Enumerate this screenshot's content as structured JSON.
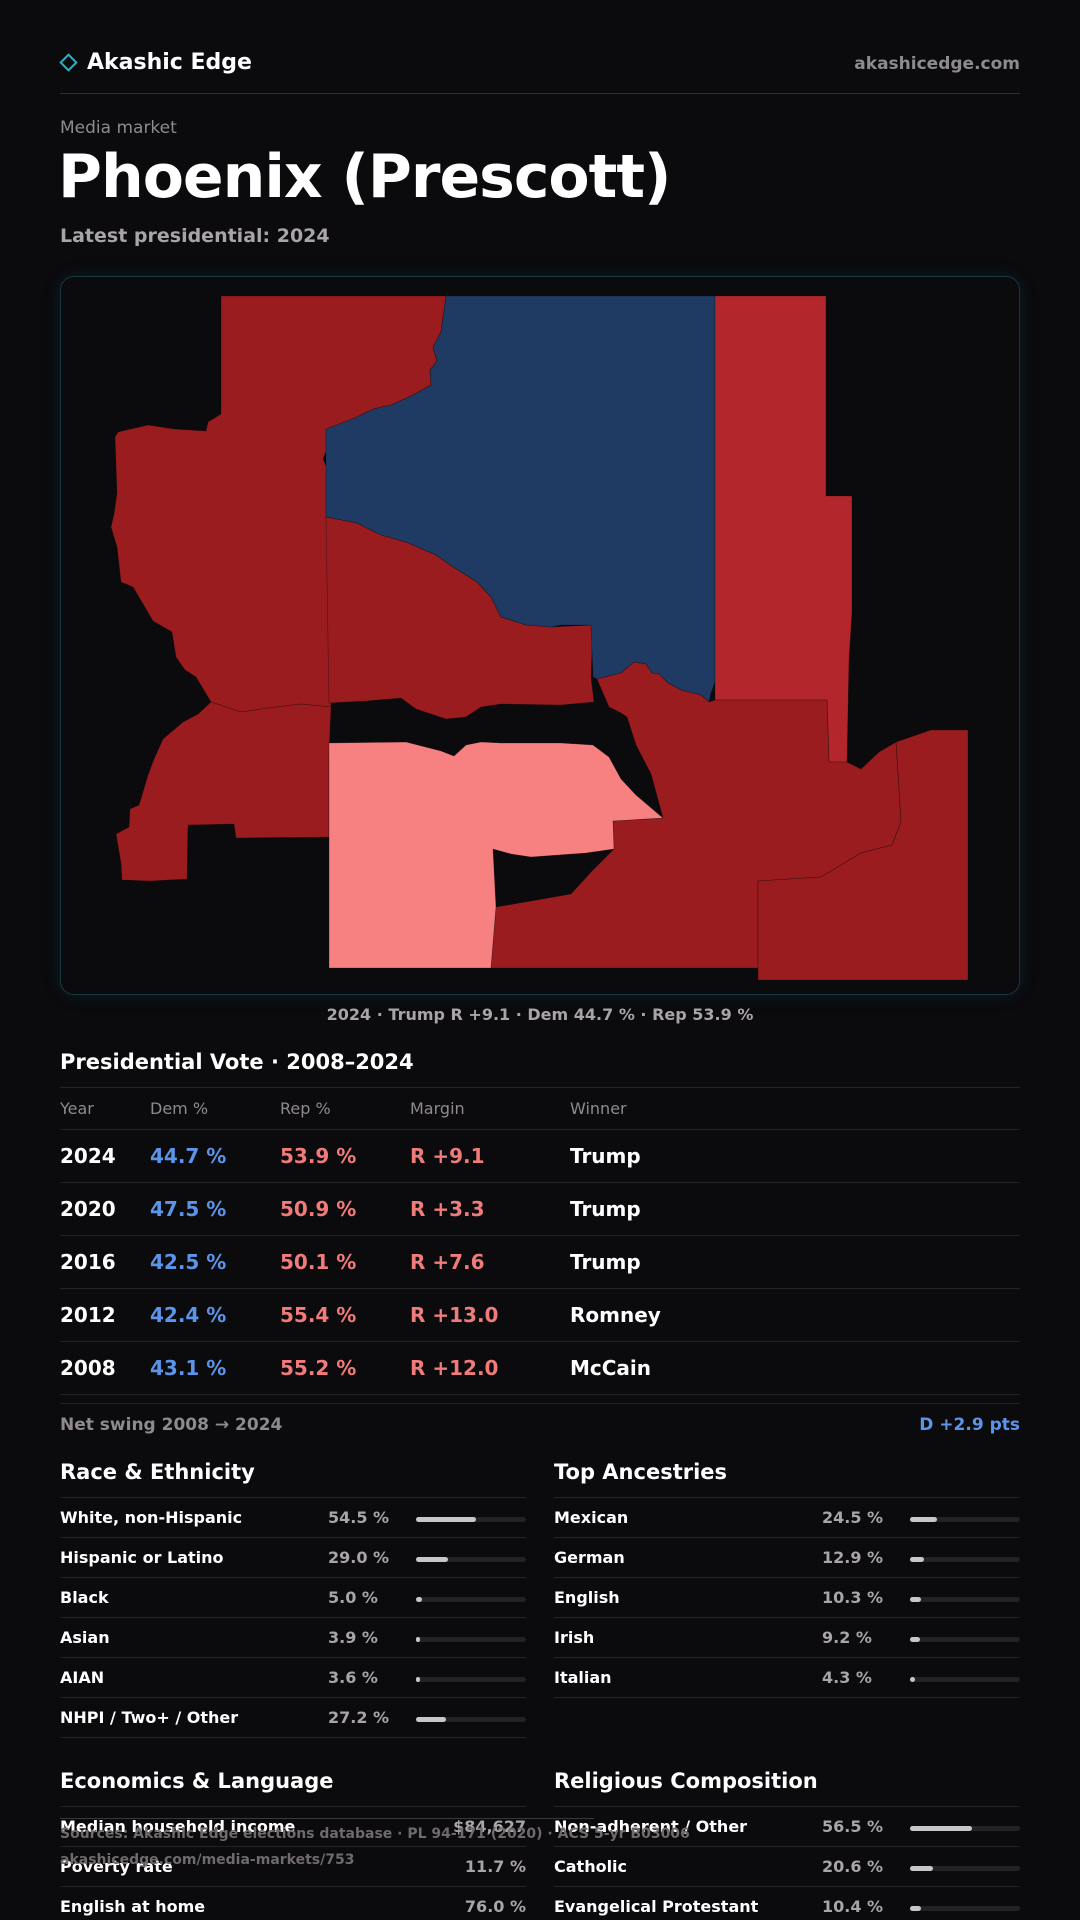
{
  "header": {
    "brand": "Akashic Edge",
    "site": "akashicedge.com"
  },
  "page": {
    "eyebrow": "Media market",
    "title": "Phoenix (Prescott)",
    "subtitle": "Latest presidential: 2024"
  },
  "map": {
    "caption": "2024 · Trump R +9.1 · Dem 44.7 % · Rep 53.9 %",
    "colors": {
      "dem": "#1f3a63",
      "rep_solid": "#9a1c1f",
      "rep_lean": "#b3262b",
      "rep_light": "#f78181"
    }
  },
  "vote": {
    "title": "Presidential Vote · 2008–2024",
    "headers": {
      "year": "Year",
      "dem": "Dem %",
      "rep": "Rep %",
      "margin": "Margin",
      "winner": "Winner"
    },
    "rows": [
      {
        "year": "2024",
        "dem": "44.7 %",
        "rep": "53.9 %",
        "margin": "R +9.1",
        "winner": "Trump"
      },
      {
        "year": "2020",
        "dem": "47.5 %",
        "rep": "50.9 %",
        "margin": "R +3.3",
        "winner": "Trump"
      },
      {
        "year": "2016",
        "dem": "42.5 %",
        "rep": "50.1 %",
        "margin": "R +7.6",
        "winner": "Trump"
      },
      {
        "year": "2012",
        "dem": "42.4 %",
        "rep": "55.4 %",
        "margin": "R +13.0",
        "winner": "Romney"
      },
      {
        "year": "2008",
        "dem": "43.1 %",
        "rep": "55.2 %",
        "margin": "R +12.0",
        "winner": "McCain"
      }
    ],
    "swing_label": "Net swing 2008 → 2024",
    "swing_value": "D +2.9 pts"
  },
  "race": {
    "title": "Race & Ethnicity",
    "rows": [
      {
        "label": "White, non-Hispanic",
        "pct": "54.5 %",
        "value": 54.5
      },
      {
        "label": "Hispanic or Latino",
        "pct": "29.0 %",
        "value": 29.0
      },
      {
        "label": "Black",
        "pct": "5.0 %",
        "value": 5.0
      },
      {
        "label": "Asian",
        "pct": "3.9 %",
        "value": 3.9
      },
      {
        "label": "AIAN",
        "pct": "3.6 %",
        "value": 3.6
      },
      {
        "label": "NHPI / Two+ / Other",
        "pct": "27.2 %",
        "value": 27.2
      }
    ]
  },
  "ancestry": {
    "title": "Top Ancestries",
    "rows": [
      {
        "label": "Mexican",
        "pct": "24.5 %",
        "value": 24.5
      },
      {
        "label": "German",
        "pct": "12.9 %",
        "value": 12.9
      },
      {
        "label": "English",
        "pct": "10.3 %",
        "value": 10.3
      },
      {
        "label": "Irish",
        "pct": "9.2 %",
        "value": 9.2
      },
      {
        "label": "Italian",
        "pct": "4.3 %",
        "value": 4.3
      }
    ]
  },
  "economics": {
    "title": "Economics & Language",
    "rows": [
      {
        "label": "Median household income",
        "value": "$84,627"
      },
      {
        "label": "Poverty rate",
        "value": "11.7 %"
      },
      {
        "label": "English at home",
        "value": "76.0 %"
      }
    ]
  },
  "religion": {
    "title": "Religious Composition",
    "rows": [
      {
        "label": "Non-adherent / Other",
        "pct": "56.5 %",
        "value": 56.5
      },
      {
        "label": "Catholic",
        "pct": "20.6 %",
        "value": 20.6
      },
      {
        "label": "Evangelical Protestant",
        "pct": "10.4 %",
        "value": 10.4
      }
    ]
  },
  "footer": {
    "source": "Sources: Akashic Edge elections database · PL 94-171 (2020) · ACS 5-yr B03006",
    "url": "akashicedge.com/media-markets/753"
  }
}
